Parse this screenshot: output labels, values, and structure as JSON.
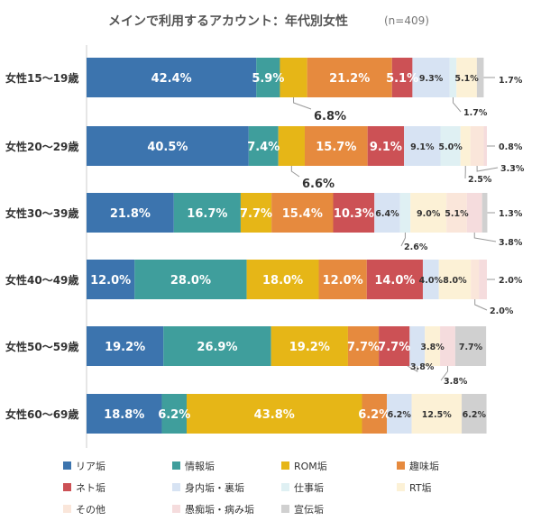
{
  "chart_data": {
    "type": "bar",
    "title": "メインで利用するアカウント：年代別女性",
    "subtitle": "(n=409)",
    "categories": [
      "女性15〜19歳",
      "女性20〜29歳",
      "女性30〜39歳",
      "女性40〜49歳",
      "女性50〜59歳",
      "女性60〜69歳"
    ],
    "series": [
      {
        "name": "リア垢",
        "color": "#3c74ae",
        "values": [
          42.4,
          40.5,
          21.8,
          12.0,
          19.2,
          18.8
        ],
        "labels": [
          "42.4%",
          "40.5%",
          "21.8%",
          "12.0%",
          "19.2%",
          "18.8%"
        ]
      },
      {
        "name": "情報垢",
        "color": "#3f9e9c",
        "values": [
          5.9,
          7.4,
          16.7,
          28.0,
          26.9,
          6.2
        ],
        "labels": [
          "5.9%",
          "7.4%",
          "16.7%",
          "28.0%",
          "26.9%",
          "6.2%"
        ]
      },
      {
        "name": "ROM垢",
        "color": "#e6b617",
        "values": [
          6.8,
          6.6,
          7.7,
          18.0,
          19.2,
          43.8
        ],
        "labels": [
          "6.8%",
          "6.6%",
          "7.7%",
          "18.0%",
          "19.2%",
          "43.8%"
        ]
      },
      {
        "name": "趣味垢",
        "color": "#e68a3e",
        "values": [
          21.2,
          15.7,
          15.4,
          12.0,
          7.7,
          6.2
        ],
        "labels": [
          "21.2%",
          "15.7%",
          "15.4%",
          "12.0%",
          "7.7%",
          "6.2%"
        ]
      },
      {
        "name": "ネト垢",
        "color": "#cc5155",
        "values": [
          5.1,
          9.1,
          10.3,
          14.0,
          7.7,
          0
        ],
        "labels": [
          "5.1%",
          "9.1%",
          "10.3%",
          "14.0%",
          "7.7%",
          ""
        ]
      },
      {
        "name": "身内垢・裏垢",
        "color": "#d7e3f3",
        "values": [
          9.3,
          9.1,
          6.4,
          4.0,
          3.8,
          6.2
        ],
        "labels": [
          "9.3%",
          "9.1%",
          "6.4%",
          "4.0%",
          "3.8%",
          "6.2%"
        ]
      },
      {
        "name": "仕事垢",
        "color": "#dff0f3",
        "values": [
          1.7,
          5.0,
          2.6,
          0,
          0,
          0
        ],
        "labels": [
          "1.7%",
          "5.0%",
          "2.6%",
          "",
          "",
          ""
        ]
      },
      {
        "name": "RT垢",
        "color": "#fcf1d6",
        "values": [
          5.1,
          2.5,
          9.0,
          8.0,
          3.8,
          12.5
        ],
        "labels": [
          "5.1%",
          "2.5%",
          "9.0%",
          "8.0%",
          "3.8%",
          "12.5%"
        ]
      },
      {
        "name": "その他",
        "color": "#fae6da",
        "values": [
          0,
          3.3,
          5.1,
          2.0,
          0,
          0
        ],
        "labels": [
          "",
          "3.3%",
          "5.1%",
          "2.0%",
          "",
          ""
        ]
      },
      {
        "name": "愚痴垢・病み垢",
        "color": "#f5dcdd",
        "values": [
          0,
          0.8,
          3.8,
          2.0,
          3.8,
          0
        ],
        "labels": [
          "",
          "0.8%",
          "3.8%",
          "2.0%",
          "3.8%",
          ""
        ]
      },
      {
        "name": "宣伝垢",
        "color": "#d0d0d0",
        "values": [
          1.7,
          0,
          1.3,
          0,
          7.7,
          6.2
        ],
        "labels": [
          "1.7%",
          "",
          "1.3%",
          "",
          "7.7%",
          "6.2%"
        ]
      }
    ],
    "xlim": [
      0,
      100
    ],
    "legend_position": "bottom",
    "grid": false
  }
}
